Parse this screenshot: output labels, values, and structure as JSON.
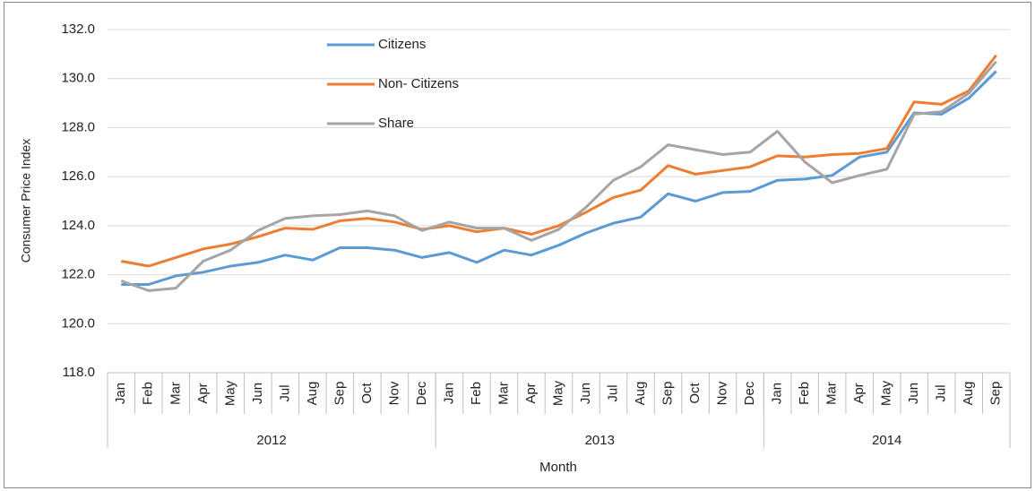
{
  "chart_data": {
    "type": "line",
    "y_label": "Consumer Price Index",
    "x_label": "Month",
    "categories": [
      "Jan",
      "Feb",
      "Mar",
      "Apr",
      "May",
      "Jun",
      "Jul",
      "Aug",
      "Sep",
      "Oct",
      "Nov",
      "Dec",
      "Jan",
      "Feb",
      "Mar",
      "Apr",
      "May",
      "Jun",
      "Jul",
      "Aug",
      "Sep",
      "Oct",
      "Nov",
      "Dec",
      "Jan",
      "Feb",
      "Mar",
      "Apr",
      "May",
      "Jun",
      "Jul",
      "Aug",
      "Sep"
    ],
    "groups": [
      {
        "label": "2012",
        "count": 12
      },
      {
        "label": "2013",
        "count": 12
      },
      {
        "label": "2014",
        "count": 9
      }
    ],
    "series": [
      {
        "name": "Citizens",
        "color": "#5b9bd5",
        "values": [
          121.6,
          121.6,
          121.95,
          122.1,
          122.35,
          122.5,
          122.8,
          122.6,
          123.1,
          123.1,
          123.0,
          122.7,
          122.9,
          122.5,
          123.0,
          122.8,
          123.2,
          123.7,
          124.1,
          124.35,
          125.3,
          125.0,
          125.35,
          125.4,
          125.85,
          125.9,
          126.05,
          126.8,
          127.0,
          128.6,
          128.55,
          129.2,
          130.3
        ]
      },
      {
        "name": "Non- Citizens",
        "color": "#ed7d31",
        "values": [
          122.55,
          122.35,
          122.7,
          123.05,
          123.25,
          123.55,
          123.9,
          123.85,
          124.2,
          124.3,
          124.15,
          123.85,
          124.0,
          123.75,
          123.9,
          123.65,
          124.0,
          124.55,
          125.15,
          125.45,
          126.45,
          126.1,
          126.25,
          126.4,
          126.85,
          126.8,
          126.9,
          126.95,
          127.15,
          129.05,
          128.95,
          129.5,
          130.95
        ]
      },
      {
        "name": "Share",
        "color": "#a5a5a5",
        "values": [
          121.75,
          121.35,
          121.45,
          122.55,
          123.0,
          123.8,
          124.3,
          124.4,
          124.45,
          124.6,
          124.4,
          123.8,
          124.15,
          123.9,
          123.9,
          123.4,
          123.85,
          124.75,
          125.85,
          126.4,
          127.3,
          127.1,
          126.9,
          127.0,
          127.85,
          126.6,
          125.75,
          126.05,
          126.3,
          128.55,
          128.65,
          129.4,
          130.7
        ]
      }
    ],
    "ylim": [
      118,
      132
    ],
    "yticks": [
      {
        "value": 118,
        "label": "118.0"
      },
      {
        "value": 120,
        "label": "120.0"
      },
      {
        "value": 122,
        "label": "122.0"
      },
      {
        "value": 124,
        "label": "124.0"
      },
      {
        "value": 126,
        "label": "126.0"
      },
      {
        "value": 128,
        "label": "128.0"
      },
      {
        "value": 130,
        "label": "130.0"
      },
      {
        "value": 132,
        "label": "132.0"
      }
    ],
    "grid": true
  }
}
